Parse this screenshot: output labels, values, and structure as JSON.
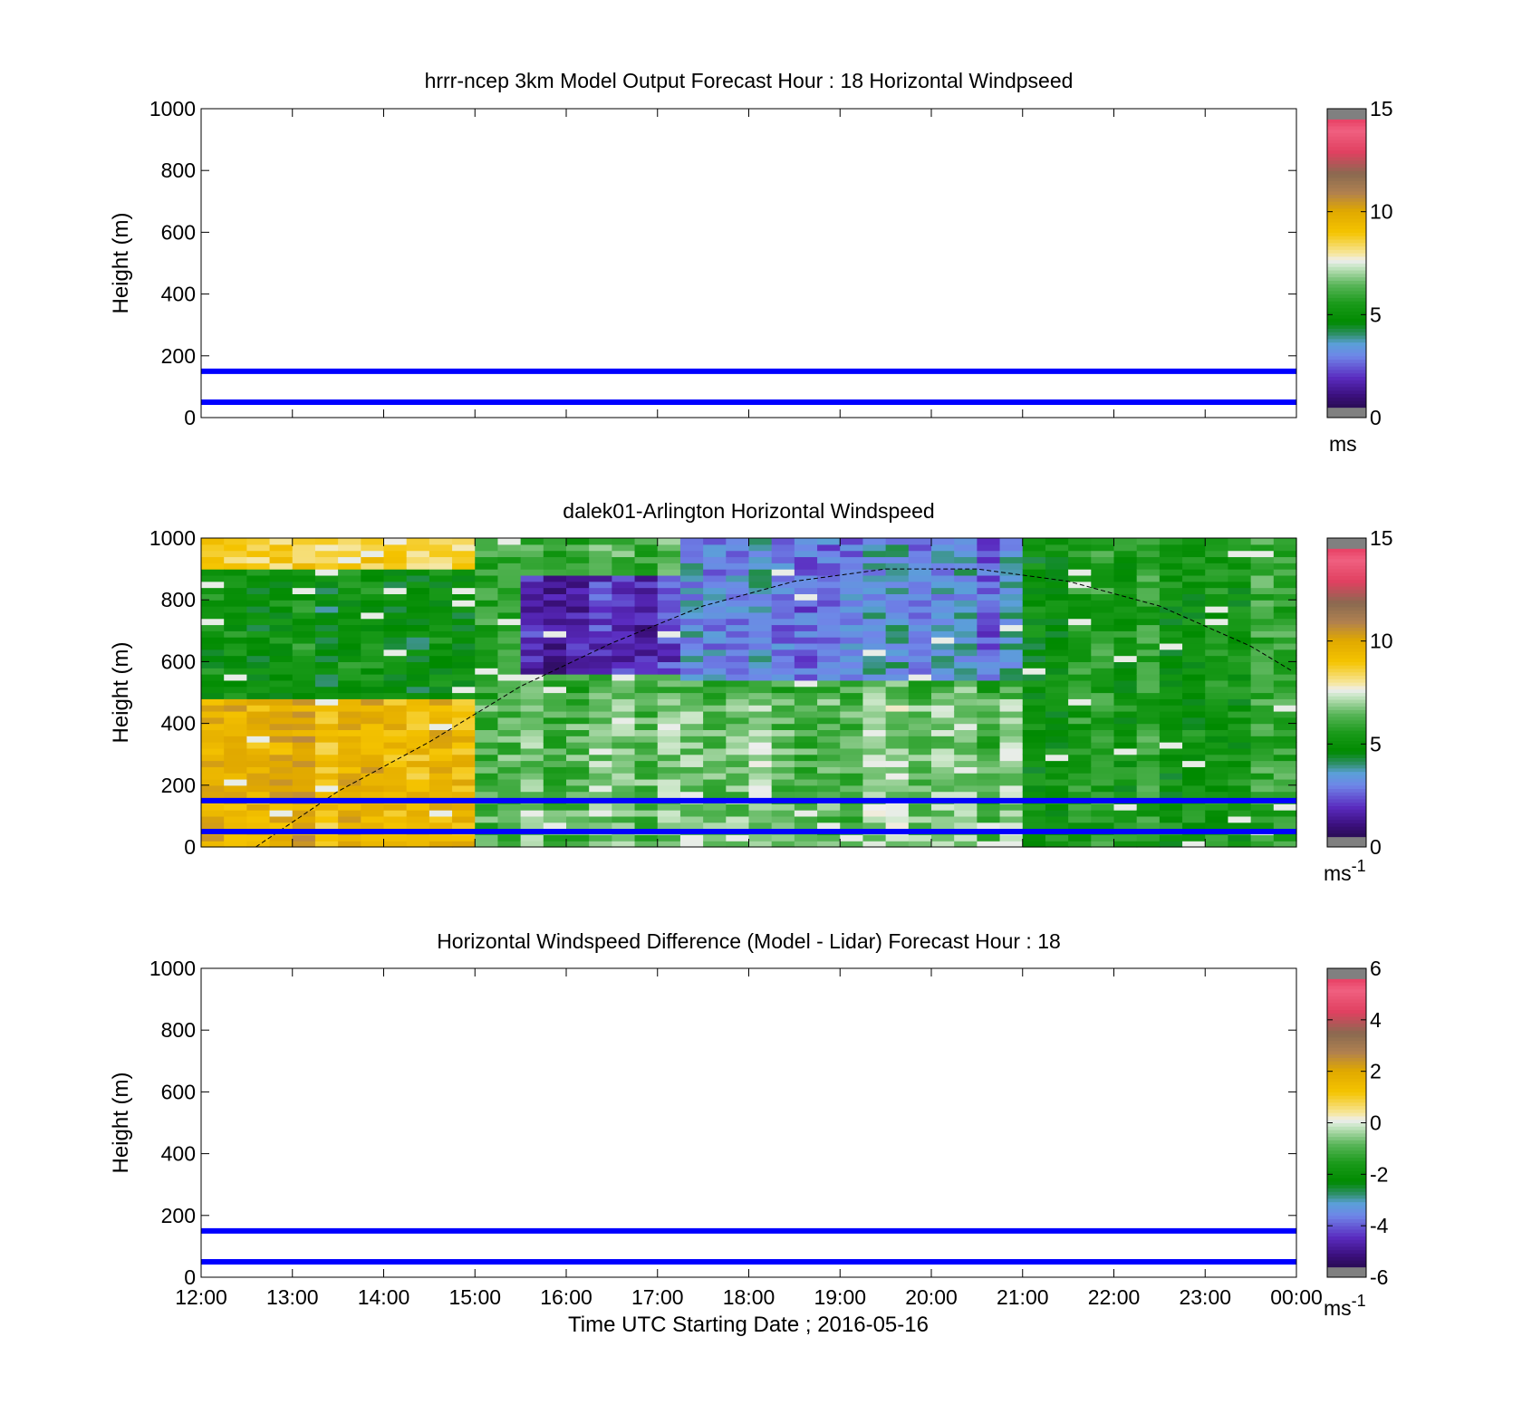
{
  "figure": {
    "xlabel": "Time UTC  Starting Date ; 2016-05-16",
    "x_ticks": [
      "12:00",
      "13:00",
      "14:00",
      "15:00",
      "16:00",
      "17:00",
      "18:00",
      "19:00",
      "20:00",
      "21:00",
      "22:00",
      "23:00",
      "00:00"
    ]
  },
  "chart_data": [
    {
      "type": "heatmap",
      "title": "hrrr-ncep 3km Model Output   Forecast Hour : 18 Horizontal Windpseed",
      "ylabel": "Height (m)",
      "xlim_hours": [
        12,
        24
      ],
      "ylim": [
        0,
        1000
      ],
      "y_ticks": [
        "0",
        "200",
        "400",
        "600",
        "800",
        "1000"
      ],
      "grid": false,
      "cells": [],
      "reference_lines_m": [
        50,
        150
      ],
      "reference_line_color": "#0000ff",
      "colorbar": {
        "ticks": [
          "0",
          "5",
          "10",
          "15"
        ],
        "range": [
          0,
          15
        ],
        "unit_base": "ms",
        "unit_sup": "",
        "colormap": "windspeed"
      }
    },
    {
      "type": "heatmap",
      "title": "dalek01-Arlington  Horizontal Windspeed",
      "ylabel": "Height (m)",
      "xlim_hours": [
        12,
        24
      ],
      "ylim": [
        0,
        1000
      ],
      "y_ticks": [
        "0",
        "200",
        "400",
        "600",
        "800",
        "1000"
      ],
      "grid": false,
      "time_bin_hours": 0.25,
      "height_bin_m": 20,
      "region_summary_ms": [
        {
          "hours": [
            12.0,
            15.0
          ],
          "heights_m": [
            0,
            480
          ],
          "speed": 9.5
        },
        {
          "hours": [
            12.0,
            15.0
          ],
          "heights_m": [
            480,
            900
          ],
          "speed": 5.0
        },
        {
          "hours": [
            12.0,
            15.0
          ],
          "heights_m": [
            900,
            1000
          ],
          "speed": 8.5
        },
        {
          "hours": [
            15.0,
            21.0
          ],
          "heights_m": [
            0,
            480
          ],
          "speed": 6.5
        },
        {
          "hours": [
            15.5,
            17.3
          ],
          "heights_m": [
            560,
            880
          ],
          "speed": 1.8
        },
        {
          "hours": [
            17.3,
            21.0
          ],
          "heights_m": [
            550,
            1000
          ],
          "speed": 3.0
        },
        {
          "hours": [
            21.0,
            24.0
          ],
          "heights_m": [
            0,
            1000
          ],
          "speed": 5.5
        }
      ],
      "reference_lines_m": [
        50,
        150
      ],
      "reference_line_color": "#0000ff",
      "dashed_curve_points": [
        [
          12.6,
          0
        ],
        [
          13.5,
          180
        ],
        [
          14.5,
          340
        ],
        [
          15.5,
          520
        ],
        [
          16.5,
          660
        ],
        [
          17.5,
          780
        ],
        [
          18.5,
          860
        ],
        [
          19.5,
          900
        ],
        [
          20.5,
          900
        ],
        [
          21.5,
          860
        ],
        [
          22.5,
          780
        ],
        [
          23.5,
          650
        ],
        [
          23.95,
          570
        ]
      ],
      "colorbar": {
        "ticks": [
          "0",
          "5",
          "10",
          "15"
        ],
        "range": [
          0,
          15
        ],
        "unit_base": "ms",
        "unit_sup": "-1",
        "colormap": "windspeed"
      }
    },
    {
      "type": "heatmap",
      "title": "Horizontal Windspeed Difference (Model - Lidar) Forecast Hour : 18",
      "ylabel": "Height (m)",
      "xlim_hours": [
        12,
        24
      ],
      "ylim": [
        0,
        1000
      ],
      "y_ticks": [
        "0",
        "200",
        "400",
        "600",
        "800",
        "1000"
      ],
      "grid": false,
      "cells": [],
      "reference_lines_m": [
        50,
        150
      ],
      "reference_line_color": "#0000ff",
      "colorbar": {
        "ticks": [
          "-6",
          "-4",
          "-2",
          "0",
          "2",
          "4",
          "6"
        ],
        "range": [
          -6,
          6
        ],
        "unit_base": "ms",
        "unit_sup": "-1",
        "colormap": "difference"
      }
    }
  ]
}
